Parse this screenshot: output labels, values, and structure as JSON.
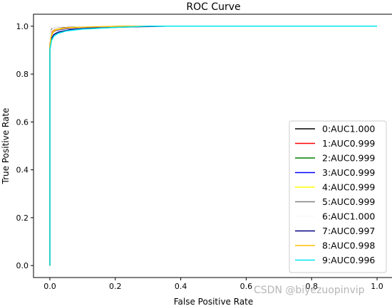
{
  "chart_data": {
    "type": "line",
    "title": "ROC Curve",
    "xlabel": "False Positive Rate",
    "ylabel": "True Positive Rate",
    "xlim": [
      -0.05,
      1.05
    ],
    "ylim": [
      -0.05,
      1.05
    ],
    "xticks": [
      "0.0",
      "0.2",
      "0.4",
      "0.6",
      "0.8",
      "1.0"
    ],
    "yticks": [
      "0.0",
      "0.2",
      "0.4",
      "0.6",
      "0.8",
      "1.0"
    ],
    "grid": false,
    "legend_position": "lower-right",
    "series": [
      {
        "name": "0:AUC1.000",
        "color": "#000000",
        "x": [
          0,
          0,
          0.003,
          0.006,
          0.012,
          0.03,
          0.06,
          0.1,
          0.2,
          1.0
        ],
        "y": [
          0,
          0.93,
          0.975,
          0.988,
          0.993,
          0.997,
          0.999,
          1.0,
          1.0,
          1.0
        ]
      },
      {
        "name": "1:AUC0.999",
        "color": "#ff0000",
        "x": [
          0,
          0,
          0.004,
          0.008,
          0.015,
          0.04,
          0.08,
          0.15,
          1.0
        ],
        "y": [
          0,
          0.93,
          0.965,
          0.978,
          0.985,
          0.992,
          0.997,
          1.0,
          1.0
        ]
      },
      {
        "name": "2:AUC0.999",
        "color": "#008000",
        "x": [
          0,
          0,
          0.004,
          0.009,
          0.017,
          0.04,
          0.08,
          0.15,
          1.0
        ],
        "y": [
          0,
          0.93,
          0.962,
          0.976,
          0.984,
          0.991,
          0.996,
          1.0,
          1.0
        ]
      },
      {
        "name": "3:AUC0.999",
        "color": "#0000ff",
        "x": [
          0,
          0,
          0.004,
          0.01,
          0.02,
          0.05,
          0.1,
          0.18,
          1.0
        ],
        "y": [
          0,
          0.93,
          0.962,
          0.975,
          0.983,
          0.99,
          0.995,
          1.0,
          1.0
        ]
      },
      {
        "name": "4:AUC0.999",
        "color": "#ffff00",
        "x": [
          0,
          0,
          0.004,
          0.01,
          0.02,
          0.05,
          0.1,
          0.18,
          1.0
        ],
        "y": [
          0,
          0.93,
          0.965,
          0.978,
          0.987,
          0.993,
          0.997,
          1.0,
          1.0
        ]
      },
      {
        "name": "5:AUC0.999",
        "color": "#808080",
        "x": [
          0,
          0,
          0.004,
          0.01,
          0.02,
          0.05,
          0.1,
          0.18,
          1.0
        ],
        "y": [
          0,
          0.93,
          0.962,
          0.976,
          0.985,
          0.992,
          0.996,
          1.0,
          1.0
        ]
      },
      {
        "name": "6:AUC1.000",
        "color": "#fafafa",
        "x": [
          0,
          0,
          0.004,
          0.01,
          0.03,
          0.08,
          1.0
        ],
        "y": [
          0,
          0.95,
          0.98,
          0.992,
          0.998,
          1.0,
          1.0
        ]
      },
      {
        "name": "7:AUC0.997",
        "color": "#000080",
        "x": [
          0,
          0,
          0.005,
          0.012,
          0.025,
          0.06,
          0.12,
          0.25,
          0.36,
          1.0
        ],
        "y": [
          0,
          0.91,
          0.95,
          0.965,
          0.975,
          0.985,
          0.992,
          0.997,
          1.0,
          1.0
        ]
      },
      {
        "name": "8:AUC0.998",
        "color": "#ffc000",
        "x": [
          0,
          0,
          0.004,
          0.01,
          0.02,
          0.05,
          0.1,
          0.22,
          1.0
        ],
        "y": [
          0,
          0.92,
          0.958,
          0.975,
          0.985,
          0.992,
          0.996,
          1.0,
          1.0
        ]
      },
      {
        "name": "9:AUC0.996",
        "color": "#00e5ee",
        "x": [
          0,
          0,
          0.005,
          0.012,
          0.025,
          0.05,
          0.1,
          0.2,
          0.3,
          1.0
        ],
        "y": [
          0,
          0.9,
          0.94,
          0.958,
          0.97,
          0.98,
          0.988,
          0.995,
          1.0,
          1.0
        ]
      }
    ]
  },
  "watermark": "CSDN @biyezuopinvip"
}
